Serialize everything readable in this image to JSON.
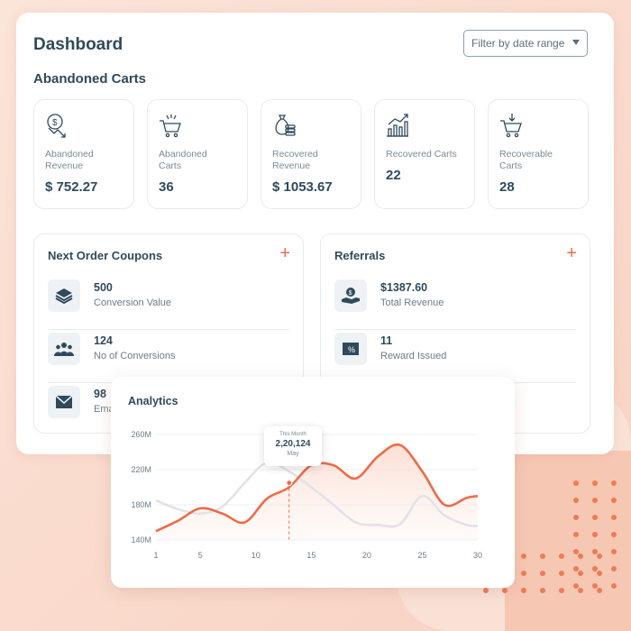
{
  "header": {
    "title": "Dashboard",
    "filter_label": "Filter by date range",
    "section_title": "Abandoned Carts"
  },
  "stats": [
    {
      "icon": "dollar-down-icon",
      "label": "Abandoned Revenue",
      "value": "$ 752.27"
    },
    {
      "icon": "cart-burst-icon",
      "label": "Abandoned Carts",
      "value": "36"
    },
    {
      "icon": "money-bag-icon",
      "label": "Recovered Revenue",
      "value": "$ 1053.67"
    },
    {
      "icon": "growth-chart-icon",
      "label": "Recovered Carts",
      "value": "22"
    },
    {
      "icon": "cart-download-icon",
      "label": "Recoverable Carts",
      "value": "28"
    }
  ],
  "coupons": {
    "title": "Next Order Coupons",
    "add_label": "+",
    "rows": [
      {
        "icon": "layers-icon",
        "value": "500",
        "label": "Conversion Value"
      },
      {
        "icon": "users-icon",
        "value": "124",
        "label": "No of Conversions"
      },
      {
        "icon": "envelope-icon",
        "value": "98",
        "label": "Ema"
      }
    ]
  },
  "referrals": {
    "title": "Referrals",
    "add_label": "+",
    "rows": [
      {
        "icon": "hand-coin-icon",
        "value": "$1387.60",
        "label": "Total Revenue"
      },
      {
        "icon": "voucher-icon",
        "value": "11",
        "label": "Reward Issued"
      }
    ]
  },
  "analytics": {
    "title": "Analytics",
    "tooltip": {
      "caption": "This Month",
      "value": "2,20,124",
      "month": "May"
    }
  },
  "chart_data": {
    "type": "line",
    "title": "Analytics",
    "x_ticks": [
      1,
      5,
      10,
      15,
      20,
      25,
      30
    ],
    "y_ticks": [
      "260M",
      "220M",
      "180M",
      "140M"
    ],
    "ylim": [
      140,
      260
    ],
    "xlim": [
      1,
      30
    ],
    "grid": true,
    "series": [
      {
        "color": "#ee6b48",
        "x": [
          1,
          3,
          5,
          7,
          9,
          11,
          13,
          15,
          17,
          19,
          21,
          23,
          25,
          27,
          29,
          30
        ],
        "y": [
          150,
          162,
          176,
          170,
          160,
          187,
          200,
          225,
          225,
          210,
          235,
          248,
          218,
          180,
          188,
          190
        ]
      },
      {
        "color": "#e2e2ea",
        "x": [
          1,
          3,
          5,
          7,
          9,
          11,
          13,
          15,
          17,
          19,
          21,
          23,
          25,
          27,
          29,
          30
        ],
        "y": [
          185,
          175,
          170,
          178,
          205,
          228,
          218,
          200,
          180,
          160,
          157,
          158,
          190,
          168,
          157,
          156
        ]
      }
    ],
    "highlight": {
      "x": 13,
      "y": 205
    }
  }
}
